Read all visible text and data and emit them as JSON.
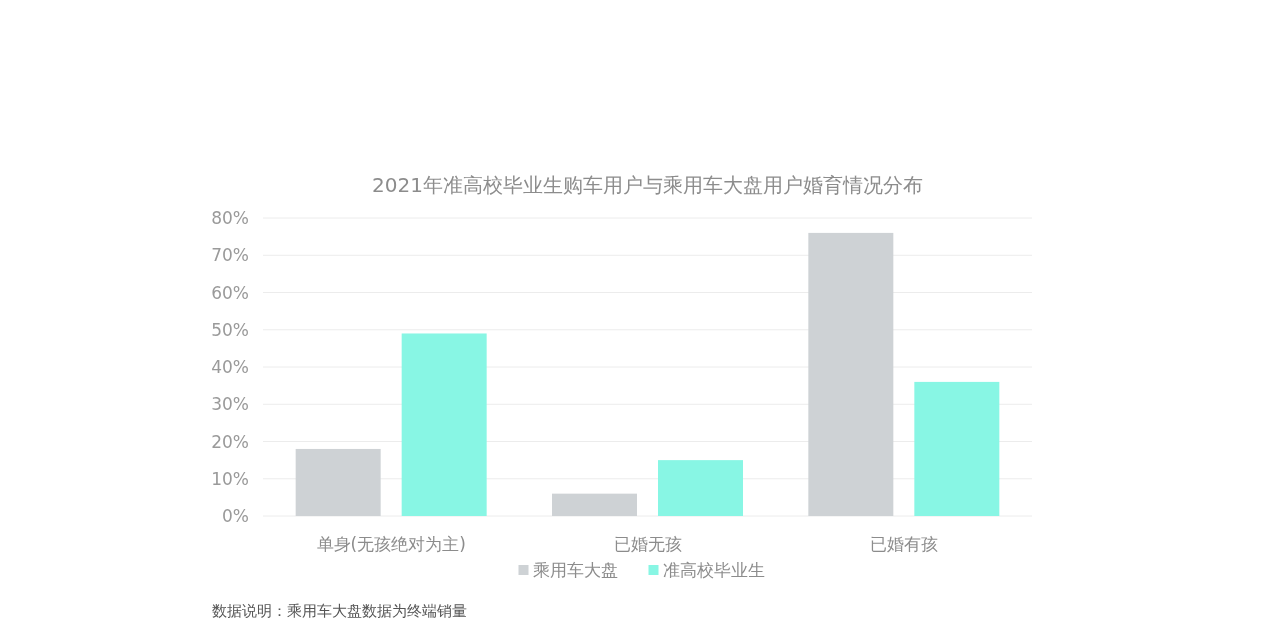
{
  "chart_data": {
    "type": "bar",
    "title": "2021年准高校毕业生购车用户与乘用车大盘用户婚育情况分布",
    "categories": [
      "单身(无孩绝对为主)",
      "已婚无孩",
      "已婚有孩"
    ],
    "series": [
      {
        "name": "乘用车大盘",
        "color": "#ced2d5",
        "values": [
          18,
          6,
          76
        ]
      },
      {
        "name": "准高校毕业生",
        "color": "#88f6e4",
        "values": [
          49,
          15,
          36
        ]
      }
    ],
    "ylim": [
      0,
      80
    ],
    "yticks": [
      {
        "value": 0,
        "label": "0%"
      },
      {
        "value": 10,
        "label": "10%"
      },
      {
        "value": 20,
        "label": "20%"
      },
      {
        "value": 30,
        "label": "30%"
      },
      {
        "value": 40,
        "label": "40%"
      },
      {
        "value": 50,
        "label": "50%"
      },
      {
        "value": 60,
        "label": "60%"
      },
      {
        "value": 70,
        "label": "70%"
      },
      {
        "value": 80,
        "label": "80%"
      }
    ],
    "grid": "y",
    "legend": "bottom",
    "annotations": [
      "数据说明：乘用车大盘数据为终端销量"
    ]
  }
}
